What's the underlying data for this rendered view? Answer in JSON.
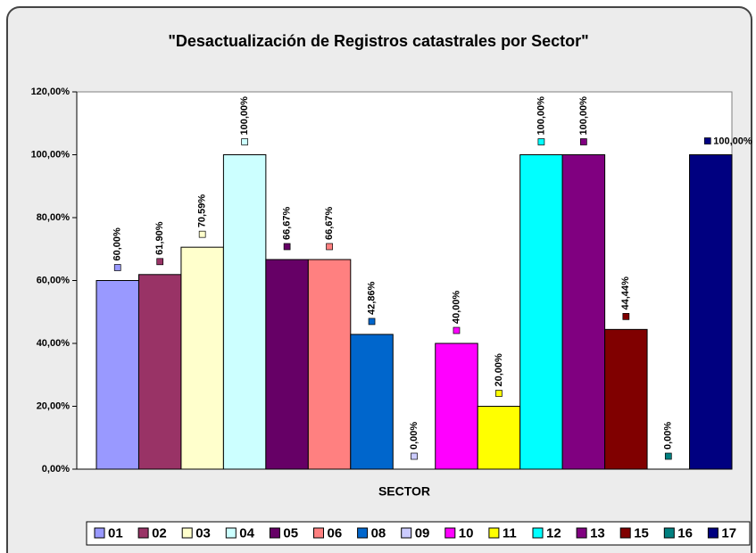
{
  "chart_data": {
    "type": "bar",
    "title": "\"Desactualización de Registros catastrales por Sector\"",
    "x_label": "SECTOR",
    "categories": [
      "01",
      "02",
      "03",
      "04",
      "05",
      "06",
      "08",
      "09",
      "10",
      "11",
      "12",
      "13",
      "15",
      "16",
      "17"
    ],
    "values": [
      60,
      61.9,
      70.59,
      100,
      66.67,
      66.67,
      42.86,
      0,
      40,
      20,
      100,
      100,
      44.44,
      0,
      100
    ],
    "value_labels": [
      "60,00%",
      "61,90%",
      "70,59%",
      "100,00%",
      "66,67%",
      "66,67%",
      "42,86%",
      "0,00%",
      "40,00%",
      "20,00%",
      "100,00%",
      "100,00%",
      "44,44%",
      "0,00%",
      "100,00%"
    ],
    "colors": [
      "#9999ff",
      "#993366",
      "#ffffcc",
      "#ccffff",
      "#660066",
      "#ff8080",
      "#0066cc",
      "#ccccff",
      "#ff00ff",
      "#ffff00",
      "#00ffff",
      "#800080",
      "#800000",
      "#008080",
      "#000080"
    ],
    "ylim": [
      0,
      120
    ],
    "yticks": [
      {
        "value": 0,
        "label": "0,00%"
      },
      {
        "value": 20,
        "label": "20,00%"
      },
      {
        "value": 40,
        "label": "40,00%"
      },
      {
        "value": 60,
        "label": "60,00%"
      },
      {
        "value": 80,
        "label": "80,00%"
      },
      {
        "value": 100,
        "label": "100,00%"
      },
      {
        "value": 120,
        "label": "120,00%"
      }
    ],
    "legend": "bottom"
  }
}
